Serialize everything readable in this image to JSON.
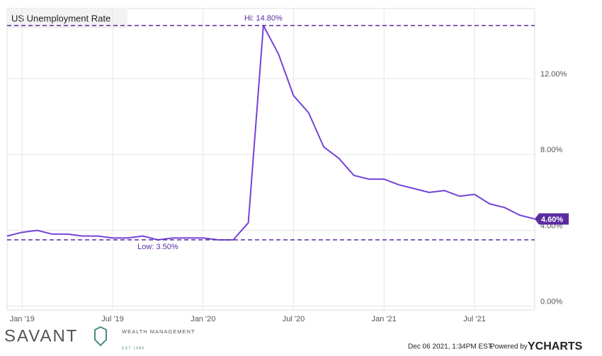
{
  "chart_data": {
    "type": "line",
    "title": "US Unemployment Rate",
    "categories": [
      null,
      "Jan '19",
      null,
      null,
      null,
      null,
      null,
      "Jul '19",
      null,
      null,
      null,
      null,
      null,
      "Jan '20",
      null,
      null,
      null,
      null,
      null,
      "Jul '20",
      null,
      null,
      null,
      null,
      null,
      "Jan '21",
      null,
      null,
      null,
      null,
      null,
      "Jul '21",
      null,
      null,
      null,
      null
    ],
    "series": [
      {
        "name": "US Unemployment Rate",
        "color": "#7443d8",
        "values": [
          3.7,
          3.9,
          4.0,
          3.8,
          3.8,
          3.7,
          3.7,
          3.6,
          3.6,
          3.7,
          3.5,
          3.6,
          3.6,
          3.6,
          3.5,
          3.5,
          4.4,
          14.8,
          13.3,
          11.1,
          10.2,
          8.4,
          7.8,
          6.9,
          6.7,
          6.7,
          6.4,
          6.2,
          6.0,
          6.1,
          5.8,
          5.9,
          5.4,
          5.2,
          4.8,
          4.6
        ]
      }
    ],
    "ylim": [
      -0.2,
      15.7
    ],
    "yticks": [
      {
        "value": 0,
        "label": "0.00%"
      },
      {
        "value": 4,
        "label": "4.00%"
      },
      {
        "value": 8,
        "label": "8.00%"
      },
      {
        "value": 12,
        "label": "12.00%"
      }
    ],
    "grid": true,
    "hi_line": {
      "value": 14.8,
      "label": "Hi: 14.80%"
    },
    "low_line": {
      "value": 3.5,
      "label": "Low: 3.50%"
    },
    "end_label": {
      "value": 4.6,
      "label": "4.60%"
    },
    "reference_color": "#5b2ca0"
  },
  "footer": {
    "brand": "SAVANT",
    "brand_sub": "WEALTH MANAGEMENT",
    "brand_est": "EST 1986",
    "timestamp": "Dec 06 2021, 1:34PM EST.",
    "powered": "Powered by",
    "source": "YCHARTS"
  }
}
